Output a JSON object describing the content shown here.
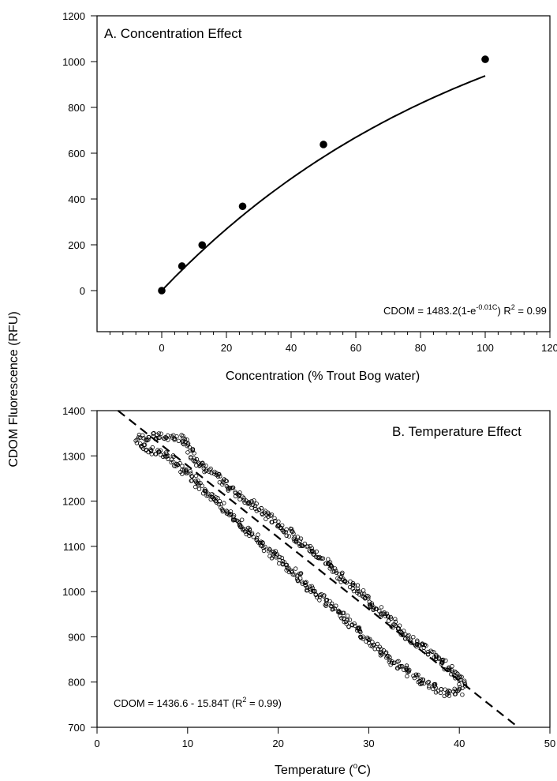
{
  "y_axis_label": "CDOM Fluorescence (RFU)",
  "chart_data": [
    {
      "type": "scatter",
      "title": "A. Concentration Effect",
      "xlabel": "Concentration (% Trout Bog water)",
      "xlim": [
        -20,
        120
      ],
      "ylim": [
        -150,
        1200
      ],
      "xticks": [
        0,
        20,
        40,
        60,
        80,
        100,
        120
      ],
      "yticks": [
        0,
        200,
        400,
        600,
        800,
        1000,
        1200
      ],
      "series": [
        {
          "values": [
            [
              0,
              0
            ],
            [
              6.25,
              107
            ],
            [
              12.5,
              199
            ],
            [
              25,
              368
            ],
            [
              50,
              638
            ],
            [
              100,
              1010
            ]
          ]
        }
      ],
      "fit": {
        "a": 1483.2,
        "k": 0.01
      },
      "equation": "CDOM = 1483.2(1-e",
      "equation_exp": "-0.01C",
      "r2_prefix": "R",
      "r2_sup": "2",
      "r2_suffix": " = 0.99"
    },
    {
      "type": "scatter",
      "title": "B. Temperature Effect",
      "xlabel_main": "Temperature (",
      "xlabel_sup": "o",
      "xlabel_end": "C)",
      "xlim": [
        0,
        50
      ],
      "ylim": [
        700,
        1400
      ],
      "xticks": [
        0,
        10,
        20,
        30,
        40,
        50
      ],
      "yticks": [
        700,
        800,
        900,
        1000,
        1100,
        1200,
        1300,
        1400
      ],
      "loop_path": [
        [
          4.6,
          1340
        ],
        [
          6,
          1342
        ],
        [
          7.5,
          1343
        ],
        [
          9.2,
          1338
        ],
        [
          9.8,
          1332
        ],
        [
          11,
          1290
        ],
        [
          15,
          1225
        ],
        [
          20,
          1150
        ],
        [
          25,
          1070
        ],
        [
          30,
          980
        ],
        [
          34,
          905
        ],
        [
          37.5,
          855
        ],
        [
          39.8,
          815
        ],
        [
          40.5,
          798
        ],
        [
          40,
          780
        ],
        [
          38.5,
          775
        ],
        [
          36,
          800
        ],
        [
          32,
          855
        ],
        [
          28,
          930
        ],
        [
          24,
          1000
        ],
        [
          20,
          1075
        ],
        [
          16,
          1145
        ],
        [
          13,
          1205
        ],
        [
          10,
          1260
        ],
        [
          7.5,
          1305
        ],
        [
          5.5,
          1315
        ],
        [
          4.7,
          1320
        ],
        [
          4.5,
          1330
        ]
      ],
      "fit": {
        "intercept": 1436.6,
        "slope": -15.84
      },
      "equation_a": "CDOM = 1436.6 - 15.84T (R",
      "equation_sup": "2",
      "equation_b": " = 0.99)"
    }
  ]
}
